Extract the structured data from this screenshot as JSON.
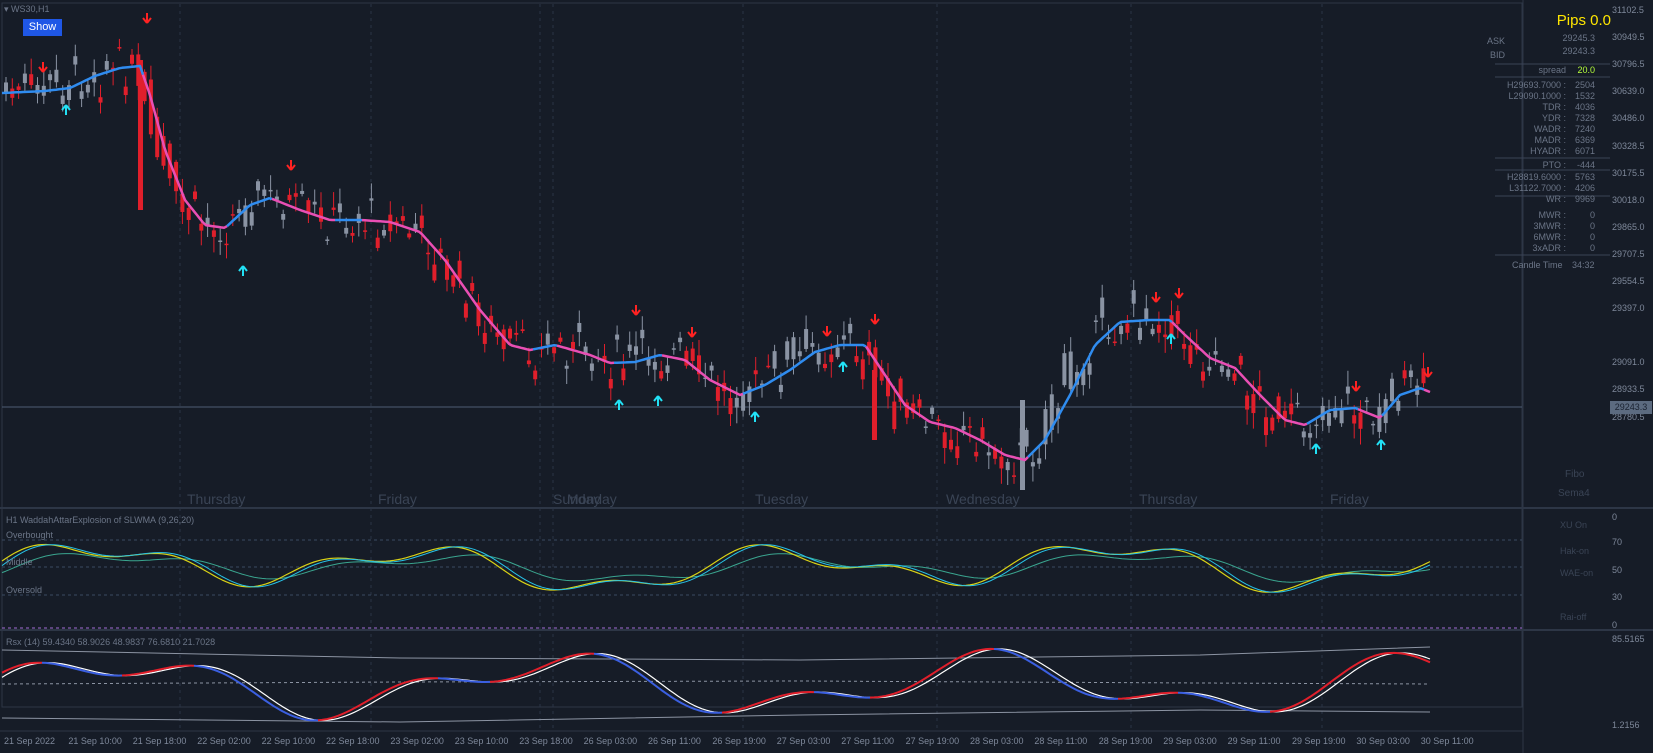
{
  "symbol_label": "WS30,H1",
  "show_button": "Show",
  "pips": "Pips 0.0",
  "ask": {
    "label": "ASK",
    "value": "29245.3"
  },
  "bid": {
    "label": "BID",
    "value": "29243.3"
  },
  "spread": {
    "label": "spread",
    "value": "20.0"
  },
  "stats": [
    {
      "label": "H29693.7000 :",
      "value": "2504"
    },
    {
      "label": "L29090.1000 :",
      "value": "1532"
    },
    {
      "label": "TDR :",
      "value": "4036"
    },
    {
      "label": "YDR :",
      "value": "7328"
    },
    {
      "label": "WADR :",
      "value": "7240"
    },
    {
      "label": "MADR :",
      "value": "6369"
    },
    {
      "label": "HYADR :",
      "value": "6071"
    }
  ],
  "pto": {
    "label": "PTO :",
    "value": "-444"
  },
  "stats2": [
    {
      "label": "H28819.6000 :",
      "value": "5763"
    },
    {
      "label": "L31122.7000 :",
      "value": "4206"
    },
    {
      "label": "WR :",
      "value": "9969"
    }
  ],
  "stats3": [
    {
      "label": "MWR :",
      "value": "0"
    },
    {
      "label": "3MWR :",
      "value": "0"
    },
    {
      "label": "6MWR :",
      "value": "0"
    },
    {
      "label": "3xADR :",
      "value": "0"
    }
  ],
  "candle_time": {
    "label": "Candle Time",
    "value": "34:32"
  },
  "fibo_label": "Fibo",
  "sema_label": "Sema4",
  "day_labels": [
    "Thursday",
    "Friday",
    "Sunday",
    "Monday",
    "Tuesday",
    "Wednesday",
    "Thursday",
    "Friday"
  ],
  "price_ticks": [
    "31102.5",
    "30949.5",
    "30796.5",
    "30639.0",
    "30486.0",
    "30328.5",
    "30175.5",
    "30018.0",
    "29865.0",
    "29707.5",
    "29554.5",
    "29397.0",
    "29243.3",
    "29091.0",
    "28933.5",
    "28780.5"
  ],
  "current_price": "29243.3",
  "indicator1": {
    "title": "H1 WaddahAttarExplosion of SLWMA (9,26,20)",
    "overbought": "Overbought",
    "middle": "Middle",
    "oversold": "Oversold",
    "ticks": [
      "0",
      "70",
      "50",
      "30",
      "0"
    ],
    "right_labels": [
      "XU On",
      "Hak-on",
      "WAE-on",
      "Rai-off"
    ]
  },
  "indicator2": {
    "title": "Rsx (14) 59.4340 58.9026 48.9837 76.6810 21.7028",
    "ticks": [
      "85.5165",
      "1.2156"
    ]
  },
  "time_ticks": [
    "21 Sep 2022",
    "21 Sep 10:00",
    "21 Sep 18:00",
    "22 Sep 02:00",
    "22 Sep 10:00",
    "22 Sep 18:00",
    "23 Sep 02:00",
    "23 Sep 10:00",
    "23 Sep 18:00",
    "26 Sep 03:00",
    "26 Sep 11:00",
    "26 Sep 19:00",
    "27 Sep 03:00",
    "27 Sep 11:00",
    "27 Sep 19:00",
    "28 Sep 03:00",
    "28 Sep 11:00",
    "28 Sep 19:00",
    "29 Sep 03:00",
    "29 Sep 11:00",
    "29 Sep 19:00",
    "30 Sep 03:00",
    "30 Sep 11:00"
  ],
  "colors": {
    "background": "#161c27",
    "bull": "#8a93a3",
    "bear": "#e01f2b",
    "ma_up": "#2f8cf0",
    "ma_down": "#e94fb4",
    "arrow_down": "#ff2222",
    "arrow_up": "#22e1f5",
    "pips": "#ffe600",
    "spread": "#b6ff3b"
  }
}
